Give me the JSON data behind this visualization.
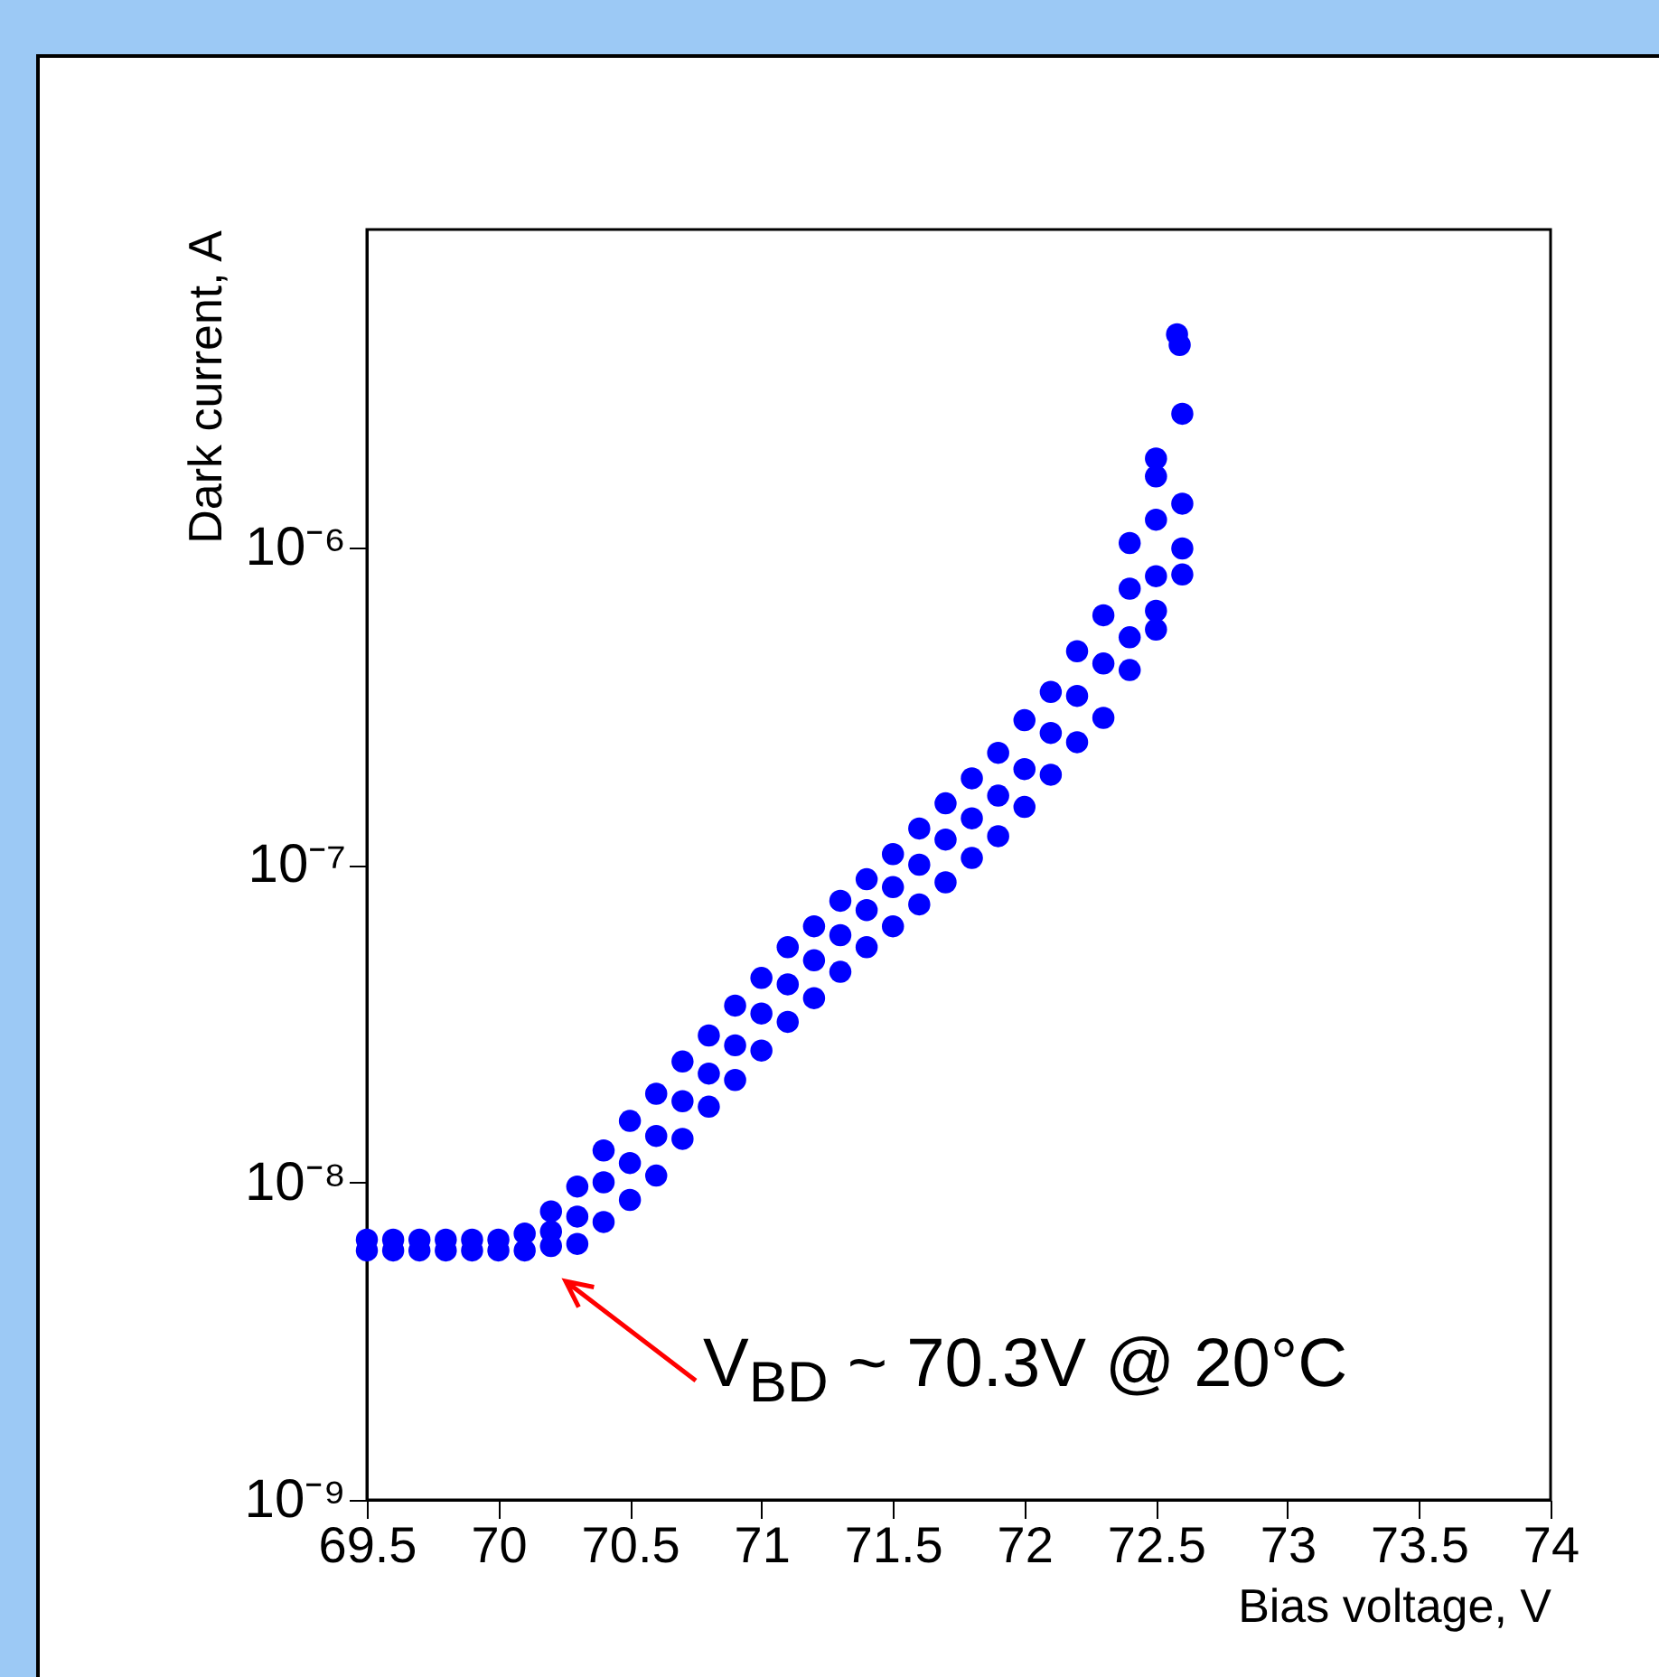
{
  "chart_data": {
    "type": "scatter",
    "xlabel": "Bias voltage, V",
    "ylabel": "Dark current, A",
    "series": [
      {
        "color": "#0000ff",
        "x": [
          69.5,
          69.5,
          69.6,
          69.6,
          69.7,
          69.7,
          69.8,
          69.8,
          69.9,
          69.9,
          70.0,
          70.0,
          70.1,
          70.1,
          70.2,
          70.2,
          70.2,
          70.3,
          70.3,
          70.3,
          70.4,
          70.4,
          70.4,
          70.5,
          70.5,
          70.5,
          70.6,
          70.6,
          70.6,
          70.7,
          70.7,
          70.7,
          70.8,
          70.8,
          70.8,
          70.9,
          70.9,
          70.9,
          71.0,
          71.0,
          71.0,
          71.1,
          71.1,
          71.1,
          71.2,
          71.2,
          71.2,
          71.3,
          71.3,
          71.3,
          71.4,
          71.4,
          71.4,
          71.5,
          71.5,
          71.5,
          71.6,
          71.6,
          71.6,
          71.7,
          71.7,
          71.7,
          71.8,
          71.8,
          71.8,
          71.9,
          71.9,
          71.9,
          72.0,
          72.0,
          72.0,
          72.1,
          72.1,
          72.1,
          72.2,
          72.2,
          72.2,
          72.3,
          72.3,
          72.3,
          72.4,
          72.4,
          72.4,
          72.4,
          72.5,
          72.5,
          72.5,
          72.5,
          72.5,
          72.5,
          72.58,
          72.59,
          72.6,
          72.6,
          72.6,
          72.6
        ],
        "values": [
          6.6e-09,
          6.1e-09,
          6.6e-09,
          6.1e-09,
          6.6e-09,
          6.1e-09,
          6.6e-09,
          6.1e-09,
          6.6e-09,
          6.1e-09,
          6.6e-09,
          6.1e-09,
          6.9e-09,
          6.1e-09,
          8.1e-09,
          7e-09,
          6.3e-09,
          9.7e-09,
          7.8e-09,
          6.4e-09,
          1.26e-08,
          1e-08,
          7.5e-09,
          1.56e-08,
          1.15e-08,
          8.8e-09,
          1.9e-08,
          1.4e-08,
          1.05e-08,
          2.4e-08,
          1.8e-08,
          1.37e-08,
          2.9e-08,
          2.2e-08,
          1.73e-08,
          3.6e-08,
          2.7e-08,
          2.1e-08,
          4.4e-08,
          3.4e-08,
          2.6e-08,
          5.5e-08,
          4.2e-08,
          3.2e-08,
          6.4e-08,
          5e-08,
          3.8e-08,
          7.7e-08,
          6e-08,
          4.6e-08,
          9e-08,
          7.2e-08,
          5.5e-08,
          1.08e-07,
          8.5e-08,
          6.4e-08,
          1.3e-07,
          1e-07,
          7.5e-08,
          1.56e-07,
          1.2e-07,
          8.8e-08,
          1.87e-07,
          1.4e-07,
          1.05e-07,
          2.25e-07,
          1.65e-07,
          1.23e-07,
          2.85e-07,
          2e-07,
          1.52e-07,
          3.5e-07,
          2.6e-07,
          1.92e-07,
          4.7e-07,
          3.4e-07,
          2.43e-07,
          6.1e-07,
          4.3e-07,
          2.9e-07,
          1.03e-06,
          7.4e-07,
          5.2e-07,
          4.1e-07,
          1.9e-06,
          1.67e-06,
          1.22e-06,
          8.1e-07,
          6.3e-07,
          5.5e-07,
          4.68e-06,
          4.33e-06,
          2.63e-06,
          1.37e-06,
          9.9e-07,
          8.2e-07
        ]
      }
    ],
    "xlim": [
      69.5,
      74
    ],
    "xticks": [
      69.5,
      70,
      70.5,
      71,
      71.5,
      72,
      72.5,
      73,
      73.5,
      74
    ],
    "ylim": [
      1e-09,
      1e-05
    ],
    "yticks": [
      {
        "value": 1e-09,
        "label": "10⁻⁹"
      },
      {
        "value": 1e-08,
        "label": "10⁻⁸"
      },
      {
        "value": 1e-07,
        "label": "10⁻⁷"
      },
      {
        "value": 1e-06,
        "label": "10⁻⁶"
      }
    ],
    "log": "y",
    "grid": false,
    "marker": "circle",
    "annotations": [
      "V$_{BD}$ ~ 70.3V @ 20°C"
    ]
  }
}
